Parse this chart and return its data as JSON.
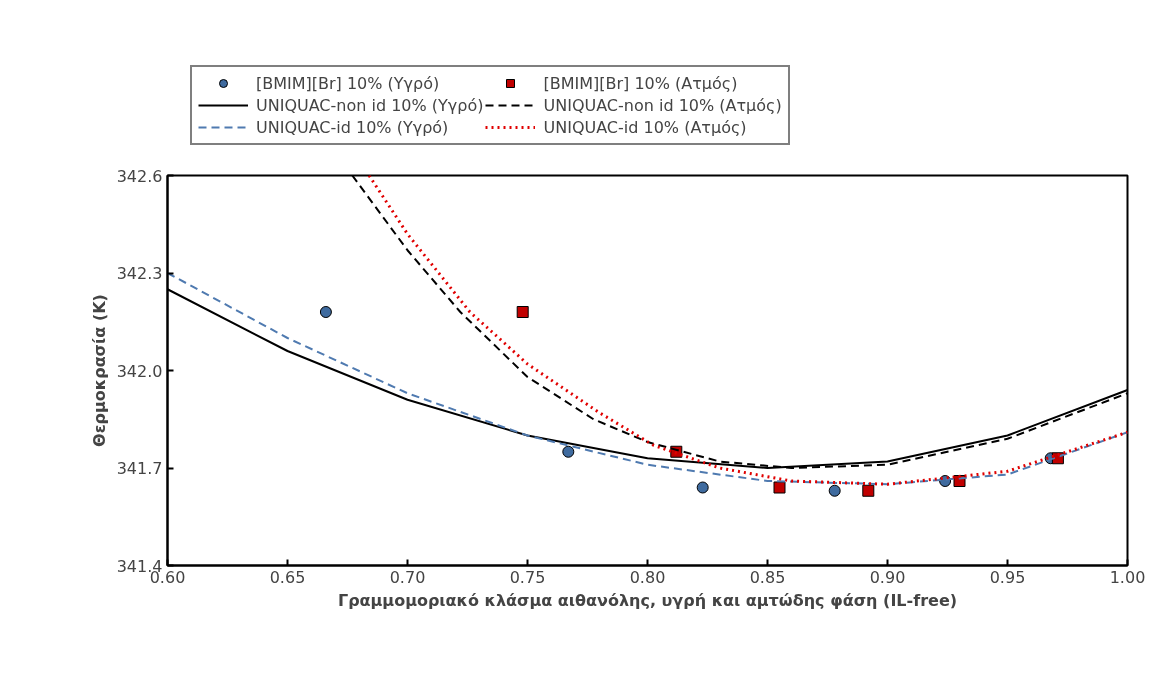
{
  "chart_data": {
    "type": "scatter",
    "xlabel": "Γραμμομοριακό κλάσμα αιθανόλης, υγρή και αμτώδης φάση (IL-free)",
    "ylabel": "Θερμοκρασία (K)",
    "xlim": [
      0.6,
      1.0
    ],
    "xticks": [
      {
        "value": 0.6,
        "label": "0.60"
      },
      {
        "value": 0.65,
        "label": "0.65"
      },
      {
        "value": 0.7,
        "label": "0.70"
      },
      {
        "value": 0.75,
        "label": "0.75"
      },
      {
        "value": 0.8,
        "label": "0.80"
      },
      {
        "value": 0.85,
        "label": "0.85"
      },
      {
        "value": 0.9,
        "label": "0.90"
      },
      {
        "value": 0.95,
        "label": "0.95"
      },
      {
        "value": 1.0,
        "label": "1.00"
      }
    ],
    "ylim": [
      341.4,
      342.6
    ],
    "yticks": [
      341.4,
      341.7,
      {
        "value": 342.0,
        "label": "342.0"
      },
      342.3,
      342.6
    ],
    "grid": false,
    "legend": "top",
    "series": [
      {
        "name": "[BMIM][Br] 10% (Υγρό)",
        "type": "scatter",
        "marker": "circle",
        "color": "#3f6b9f",
        "x": [
          0.666,
          0.767,
          0.823,
          0.878,
          0.924,
          0.968
        ],
        "values": [
          342.18,
          341.75,
          341.64,
          341.63,
          341.66,
          341.73
        ]
      },
      {
        "name": "[BMIM][Br] 10% (Ατμός)",
        "type": "scatter",
        "marker": "square",
        "color": "#c00000",
        "x": [
          0.748,
          0.812,
          0.855,
          0.892,
          0.93,
          0.971
        ],
        "values": [
          342.18,
          341.75,
          341.64,
          341.63,
          341.66,
          341.73
        ]
      },
      {
        "name": "UNIQUAC-non id 10% (Υγρό)",
        "type": "line",
        "line_style": "solid",
        "color": "#000000",
        "x": [
          0.6,
          0.65,
          0.7,
          0.75,
          0.8,
          0.85,
          0.9,
          0.95,
          1.0
        ],
        "values": [
          342.25,
          342.06,
          341.91,
          341.8,
          341.73,
          341.7,
          341.72,
          341.8,
          341.94
        ]
      },
      {
        "name": "UNIQUAC-non id 10% (Ατμός)",
        "type": "line",
        "line_style": "dashed",
        "color": "#000000",
        "x": [
          0.677,
          0.7,
          0.722,
          0.75,
          0.7775,
          0.8,
          0.83,
          0.86,
          0.9,
          0.95,
          1.0
        ],
        "values": [
          342.6,
          342.37,
          342.18,
          341.98,
          341.85,
          341.78,
          341.72,
          341.7,
          341.71,
          341.79,
          341.93
        ]
      },
      {
        "name": "UNIQUAC-id 10% (Υγρό)",
        "type": "line",
        "line_style": "dashed",
        "color": "#4f7ab0",
        "x": [
          0.6,
          0.65,
          0.7,
          0.75,
          0.8,
          0.85,
          0.9,
          0.95,
          1.0
        ],
        "values": [
          342.3,
          342.1,
          341.93,
          341.8,
          341.71,
          341.66,
          341.65,
          341.68,
          341.81
        ]
      },
      {
        "name": "UNIQUAC-id 10% (Ατμός)",
        "type": "line",
        "line_style": "dotted",
        "color": "#e00000",
        "x": [
          0.684,
          0.7,
          0.726,
          0.75,
          0.78,
          0.8025,
          0.83,
          0.86,
          0.9,
          0.95,
          1.0
        ],
        "values": [
          342.6,
          342.42,
          342.18,
          342.02,
          341.87,
          341.77,
          341.7,
          341.66,
          341.65,
          341.69,
          341.81
        ]
      }
    ]
  }
}
